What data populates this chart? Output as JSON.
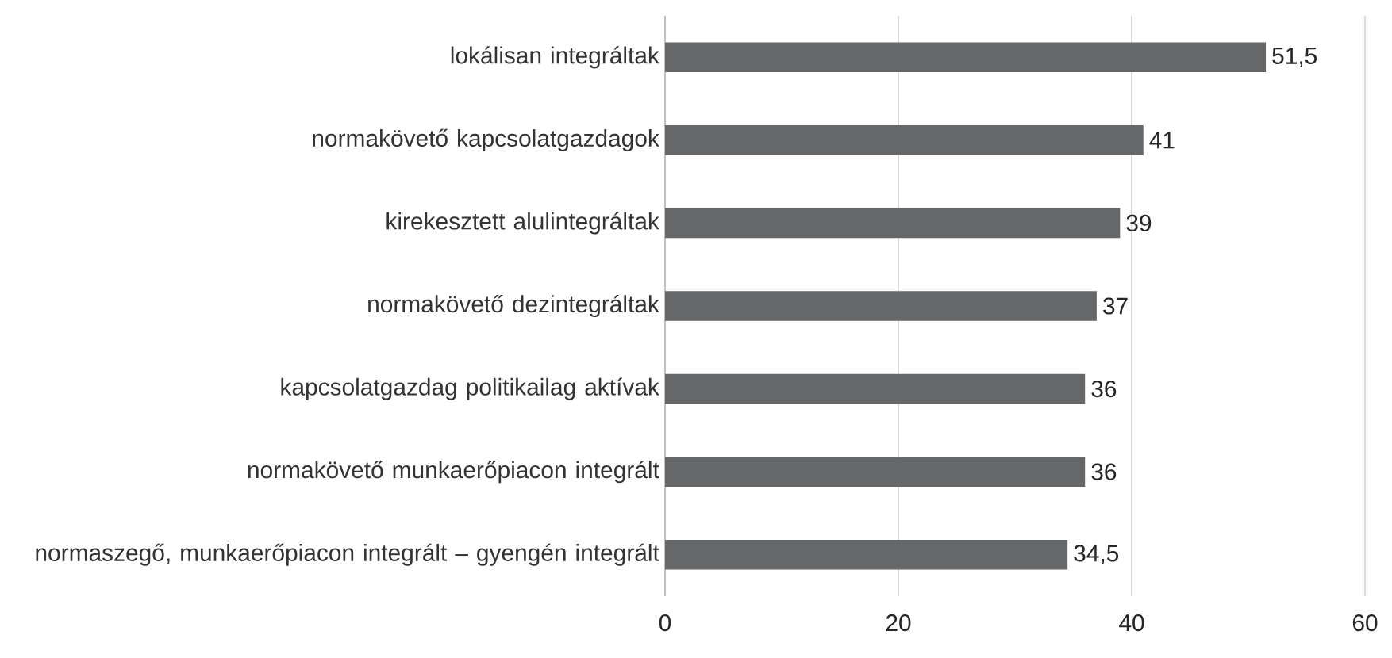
{
  "chart_data": {
    "type": "bar",
    "orientation": "horizontal",
    "categories": [
      "lokálisan integráltak",
      "normakövető kapcsolatgazdagok",
      "kirekesztett alulintegráltak",
      "normakövető dezintegráltak",
      "kapcsolatgazdag politikailag aktívak",
      "normakövető munkaerőpiacon integrált",
      "normaszegő, munkaerőpiacon integrált – gyengén integrált"
    ],
    "values": [
      51.5,
      41,
      39,
      37,
      36,
      36,
      34.5
    ],
    "value_labels": [
      "51,5",
      "41",
      "39",
      "37",
      "36",
      "36",
      "34,5"
    ],
    "color": "#666769",
    "xlim": [
      0,
      60
    ],
    "xticks": [
      0,
      20,
      40,
      60
    ],
    "grid": "x"
  }
}
